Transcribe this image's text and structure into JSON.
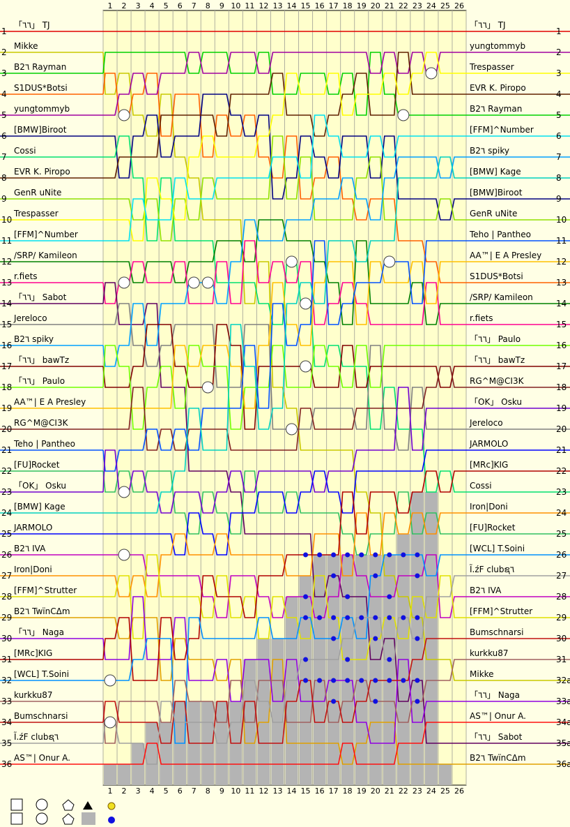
{
  "chart_data": {
    "type": "line",
    "laps": [
      "1",
      "2",
      "3",
      "4",
      "5",
      "6",
      "7",
      "8",
      "9",
      "10",
      "11",
      "12",
      "13",
      "14",
      "15",
      "16",
      "17",
      "18",
      "19",
      "20",
      "21",
      "22",
      "23",
      "24",
      "25",
      "26"
    ],
    "position_labels_left": [
      "1",
      "2",
      "3",
      "4",
      "5",
      "6",
      "7",
      "8",
      "9",
      "10",
      "11",
      "12",
      "13",
      "14",
      "15",
      "16",
      "17",
      "18",
      "19",
      "20",
      "21",
      "22",
      "23",
      "24",
      "25",
      "26",
      "27",
      "28",
      "29",
      "30",
      "31",
      "32",
      "33",
      "34",
      "35",
      "36"
    ],
    "position_labels_right": [
      "1",
      "2",
      "3",
      "4",
      "5",
      "6",
      "7",
      "8",
      "9",
      "10",
      "11",
      "12",
      "13",
      "14",
      "15",
      "16",
      "17",
      "18",
      "19",
      "20",
      "21",
      "22",
      "23",
      "24",
      "25",
      "26",
      "27",
      "28",
      "29",
      "30",
      "31",
      "32a",
      "33a",
      "34a",
      "35a",
      "36a"
    ],
    "grid_order": [
      "「٦٦」 TJ",
      "Mikke",
      "B2٦ Rayman",
      "S1DUS*Botsi",
      "yungtommyb",
      "[BMW]Biroot",
      "Cossi",
      "EVR K. Piropo",
      "GenR uNite",
      "Trespasser",
      "[FFM]^Number",
      "/SRP/ Kamileon",
      "r.fiets",
      "「٦٦」 Sabot",
      "Jereloco",
      "B2٦ spiky",
      "「٦٦」 bawTz",
      "「٦٦」 Paulo",
      "AA™| E A Presley",
      "RG^M@CI3K",
      "Teho | Pantheo",
      "[FU]Rocket",
      "「OK」 Osku",
      "[BMW] Kage",
      "JARMOLO",
      "B2٦ IVA",
      "Iron|Doni",
      "[FFM]^Strutter",
      "B2٦ TwïnCΔm",
      "「٦٦」 Naga",
      "[MRc]KIG",
      "[WCL] T.Soini",
      "kurkku87",
      "Bumschnarsi",
      "Ĩ.źF clubຊ٦",
      "AS™| Onur A."
    ],
    "finish_order": [
      "「٦٦」 TJ",
      "yungtommyb",
      "Trespasser",
      "EVR K. Piropo",
      "B2٦ Rayman",
      "[FFM]^Number",
      "B2٦ spiky",
      "[BMW] Kage",
      "[BMW]Biroot",
      "GenR uNite",
      "Teho | Pantheo",
      "AA™| E A Presley",
      "S1DUS*Botsi",
      "/SRP/ Kamileon",
      "r.fiets",
      "「٦٦」 Paulo",
      "「٦٦」 bawTz",
      "RG^M@CI3K",
      "「OK」 Osku",
      "Jereloco",
      "JARMOLO",
      "[MRc]KIG",
      "Cossi",
      "Iron|Doni",
      "[FU]Rocket",
      "[WCL] T.Soini",
      "Ĩ.źF clubຊ٦",
      "B2٦ IVA",
      "[FFM]^Strutter",
      "Bumschnarsi",
      "kurkku87",
      "Mikke",
      "「٦٦」 Naga",
      "AS™| Onur A.",
      "「٦٦」 Sabot",
      "B2٦ TwïnCΔm"
    ],
    "retired_counts": [
      1,
      1,
      2,
      3,
      3,
      4,
      4,
      4,
      4,
      4,
      6,
      7,
      7,
      9,
      10,
      11,
      11,
      11,
      11,
      11,
      11,
      12,
      14,
      14,
      1,
      0
    ],
    "series_colors": [
      "#e00000",
      "#c8c800",
      "#00d000",
      "#ff6000",
      "#a000a0",
      "#000080",
      "#00e070",
      "#602000",
      "#90e000",
      "#ffff00",
      "#00e0f0",
      "#008000",
      "#ff0090",
      "#600060",
      "#808080",
      "#00a0ff",
      "#800000",
      "#70ff00",
      "#ffc000",
      "#802020",
      "#0050ff",
      "#30c060",
      "#7000d0",
      "#00d0c0",
      "#0000ff",
      "#c000c0",
      "#ff9000",
      "#e0e000",
      "#e0a000",
      "#9000e0",
      "#b00000",
      "#0090ff",
      "#a06060",
      "#c01010",
      "#a0a0a0",
      "#ff1010"
    ]
  }
}
